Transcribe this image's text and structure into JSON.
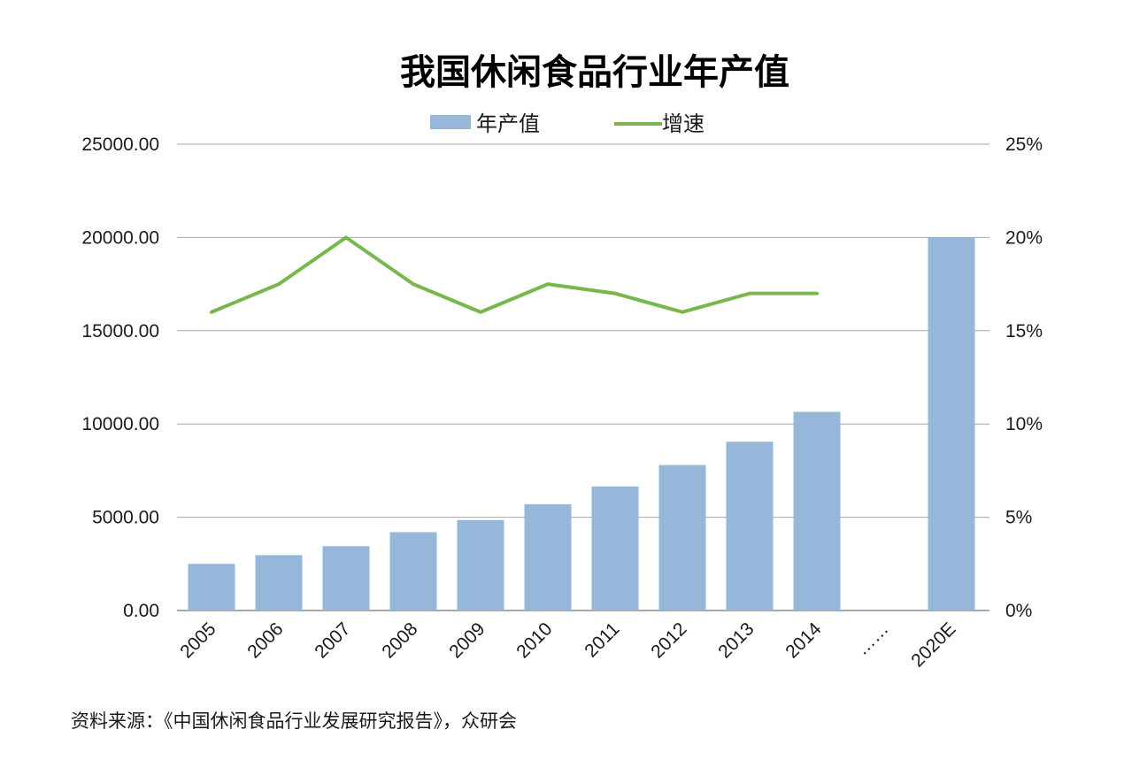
{
  "chart_data": {
    "type": "bar",
    "title": "我国休闲食品行业年产值",
    "categories": [
      "2005",
      "2006",
      "2007",
      "2008",
      "2009",
      "2010",
      "2011",
      "2012",
      "2013",
      "2014",
      "……",
      "2020E"
    ],
    "series": [
      {
        "name": "年产值",
        "type": "bar",
        "axis": "left",
        "color": "#95b7da",
        "values": [
          2500,
          2970,
          3450,
          4200,
          4850,
          5700,
          6650,
          7800,
          9050,
          10650,
          null,
          20000
        ]
      },
      {
        "name": "增速",
        "type": "line",
        "axis": "right",
        "color": "#77b74d",
        "values": [
          16,
          17.5,
          20,
          17.5,
          16,
          17.5,
          17,
          16,
          17,
          17,
          null,
          null
        ]
      }
    ],
    "y_left": {
      "ylim": [
        0,
        25000
      ],
      "ticks": [
        "0.00",
        "5000.00",
        "10000.00",
        "15000.00",
        "20000.00",
        "25000.00"
      ]
    },
    "y_right": {
      "ylim": [
        0,
        25
      ],
      "ticks": [
        "0%",
        "5%",
        "10%",
        "15%",
        "20%",
        "25%"
      ]
    },
    "grid": true,
    "legend": "top-center"
  },
  "source_note": "资料来源：《中国休闲食品行业发展研究报告》，众研会"
}
